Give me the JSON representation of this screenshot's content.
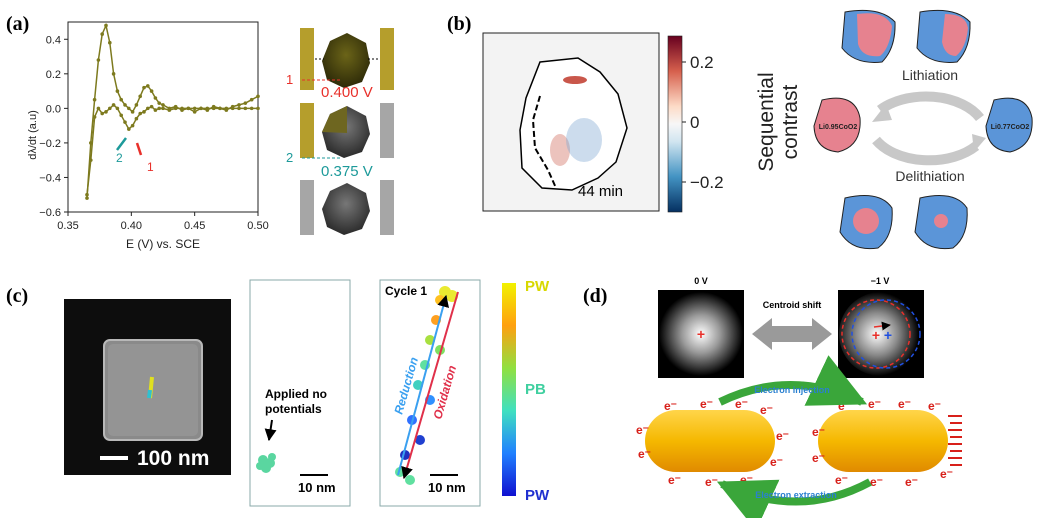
{
  "panels": {
    "a": {
      "label": "(a)",
      "ylabel": "dλ/dt (a.u)",
      "xlabel": "E (V) vs. SCE",
      "yticks": [
        "0.4",
        "0.2",
        "0.0",
        "−0.2",
        "−0.4",
        "−0.6"
      ],
      "xticks": [
        "0.35",
        "0.40",
        "0.45",
        "0.50"
      ],
      "peak1": "1",
      "peak2": "2",
      "v1": "0.400 V",
      "v2": "0.375 V",
      "state1": "1",
      "state2": "2",
      "colors": {
        "curve": "#7d7a1e",
        "v1": "#e8302a",
        "v2": "#1d9a9a"
      }
    },
    "b": {
      "label": "(b)",
      "time": "44 min",
      "cbar_title_1": "Sequential",
      "cbar_title_2": "contrast",
      "cbar_ticks": [
        "0.2",
        "0",
        "−0.2"
      ],
      "lithiation": "Lithiation",
      "delithiation": "Delithiation",
      "left_particle": "Li0.95CoO2",
      "right_particle": "Li0.77CoO2",
      "colors": {
        "pink": "#e6828f",
        "blue": "#5b95d8"
      }
    },
    "c": {
      "label": "(c)",
      "scale_sem": "100 nm",
      "no_potential_1": "Applied no",
      "no_potential_2": "potentials",
      "scale_1": "10 nm",
      "cycle": "Cycle 1",
      "reduction": "Reduction",
      "oxidation": "Oxidation",
      "scale_2": "10 nm",
      "cbar_labels": [
        "PW",
        "PB",
        "PW"
      ]
    },
    "d": {
      "label": "(d)",
      "v0": "0 V",
      "v1": "−1 V",
      "centroid": "Centroid shift",
      "injection": "Electron injection",
      "extraction": "Electron extraction",
      "electron": "e⁻"
    }
  },
  "chart_data": {
    "type": "line",
    "xlabel": "E (V) vs. SCE",
    "ylabel": "dλ/dt (a.u)",
    "xlim": [
      0.35,
      0.5
    ],
    "ylim": [
      -0.6,
      0.5
    ],
    "series": [
      {
        "x": [
          0.365,
          0.368,
          0.371,
          0.374,
          0.377,
          0.38,
          0.383,
          0.386,
          0.389,
          0.392,
          0.395,
          0.398,
          0.401,
          0.404,
          0.407,
          0.41,
          0.413,
          0.416,
          0.419,
          0.422,
          0.425,
          0.43,
          0.435,
          0.44,
          0.445,
          0.45,
          0.455,
          0.46,
          0.465,
          0.47,
          0.475,
          0.48,
          0.485,
          0.49,
          0.495,
          0.5
        ],
        "values": [
          -0.52,
          -0.2,
          0.05,
          0.28,
          0.43,
          0.48,
          0.38,
          0.2,
          0.1,
          0.05,
          0.02,
          0.0,
          -0.02,
          0.02,
          0.07,
          0.12,
          0.13,
          0.1,
          0.06,
          0.03,
          0.02,
          0.0,
          0.01,
          -0.01,
          0.0,
          -0.02,
          0.0,
          -0.01,
          0.01,
          0.0,
          -0.01,
          0.01,
          0.02,
          0.03,
          0.05,
          0.07
        ]
      },
      {
        "x": [
          0.365,
          0.368,
          0.371,
          0.374,
          0.377,
          0.38,
          0.383,
          0.386,
          0.389,
          0.392,
          0.395,
          0.398,
          0.401,
          0.404,
          0.407,
          0.41,
          0.413,
          0.416,
          0.419,
          0.422,
          0.425,
          0.43,
          0.435,
          0.44,
          0.445,
          0.45,
          0.455,
          0.46,
          0.465,
          0.47,
          0.475,
          0.48,
          0.485,
          0.49,
          0.495,
          0.5
        ],
        "values": [
          -0.5,
          -0.3,
          -0.05,
          0.0,
          -0.03,
          -0.02,
          0.0,
          0.02,
          0.0,
          -0.04,
          -0.08,
          -0.12,
          -0.1,
          -0.06,
          -0.03,
          -0.02,
          0.0,
          0.01,
          -0.01,
          0.0,
          0.0,
          -0.01,
          0.0,
          0.0,
          0.0,
          0.0,
          0.0,
          0.0,
          0.0,
          0.0,
          0.0,
          0.0,
          0.0,
          0.0,
          0.0,
          0.0
        ]
      }
    ]
  }
}
